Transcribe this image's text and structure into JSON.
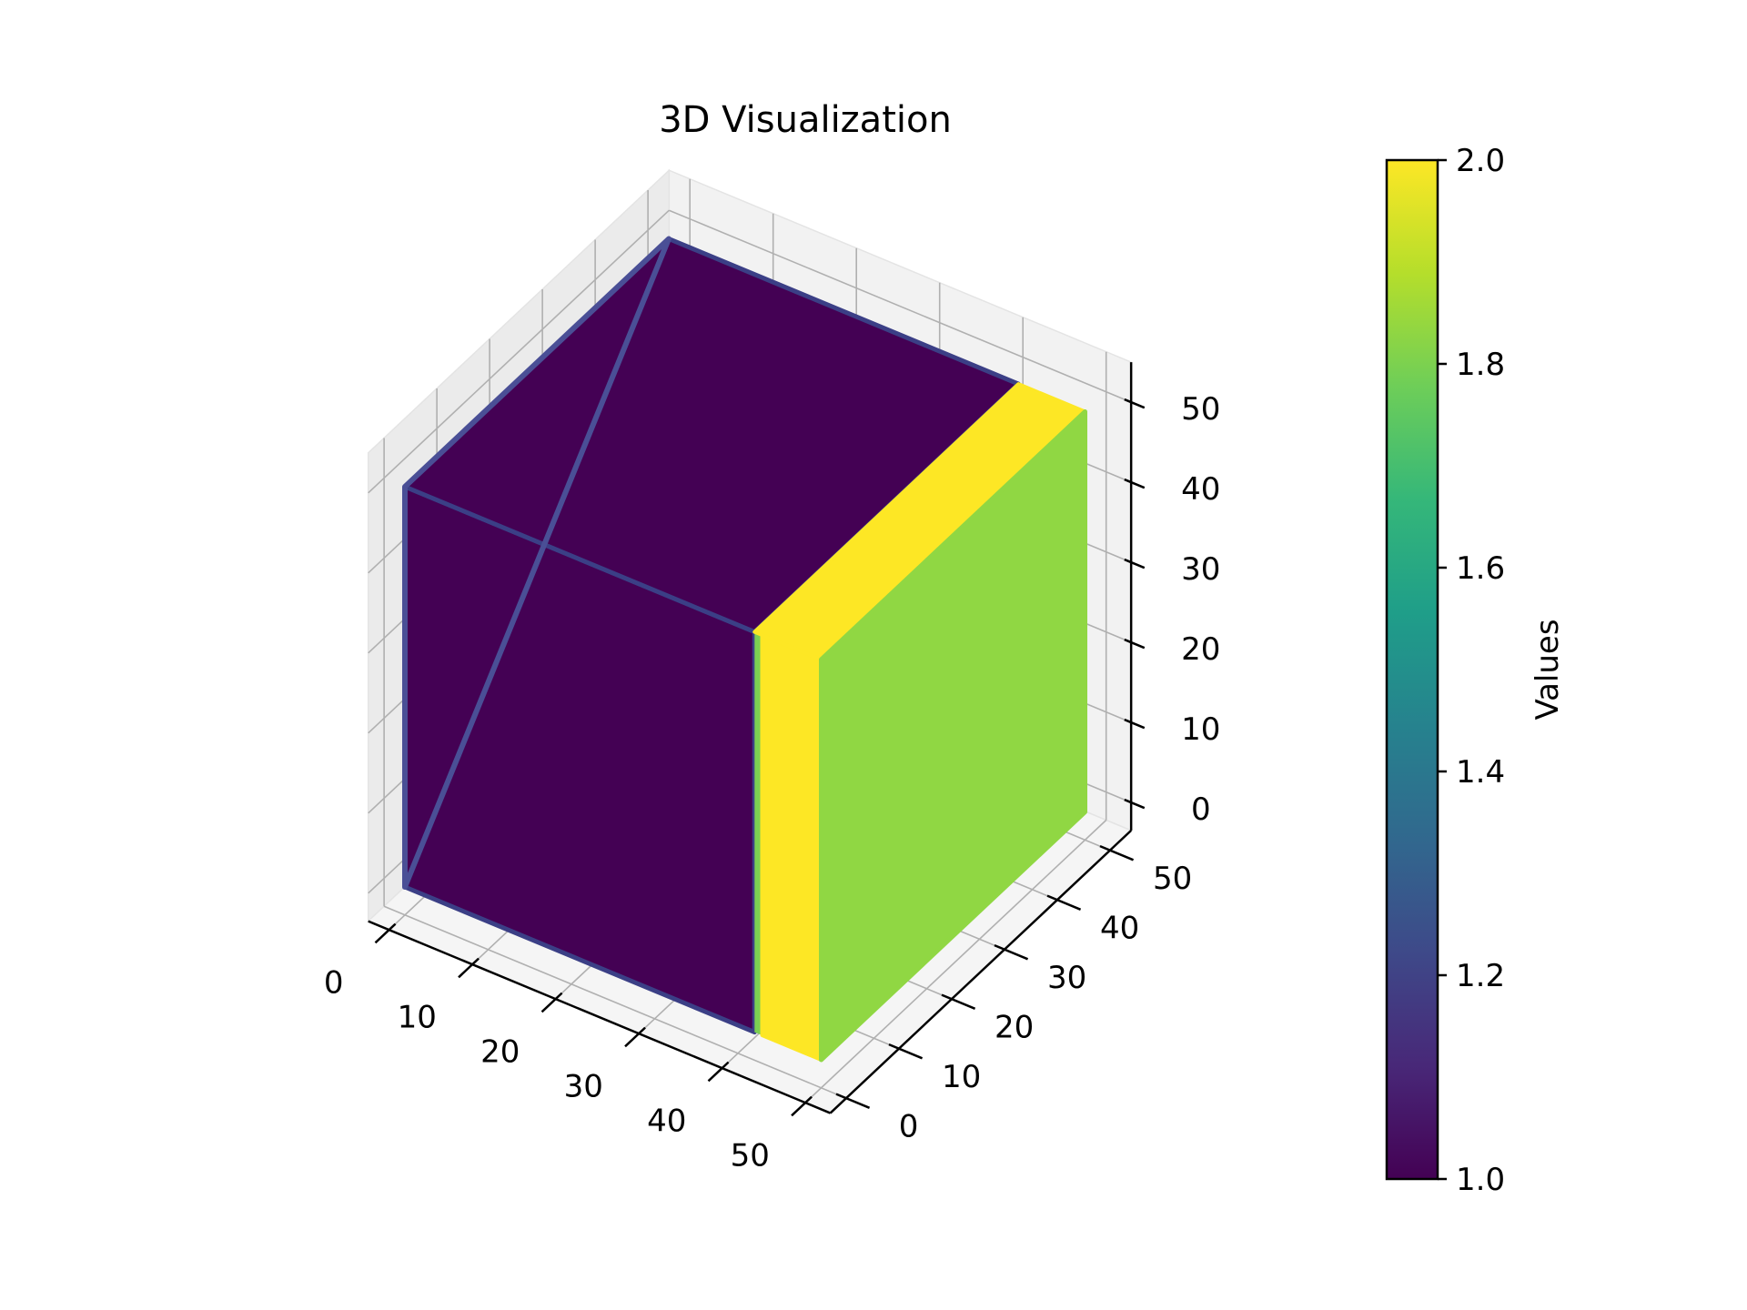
{
  "chart_data": {
    "type": "scatter",
    "projection": "3d",
    "title": "3D Visualization",
    "xlabel": "",
    "ylabel": "",
    "zlabel": "",
    "x_ticks": [
      0,
      10,
      20,
      30,
      40,
      50
    ],
    "y_ticks": [
      0,
      10,
      20,
      30,
      40,
      50
    ],
    "z_ticks": [
      0,
      10,
      20,
      30,
      40,
      50
    ],
    "xlim": [
      0,
      50
    ],
    "ylim": [
      0,
      50
    ],
    "zlim": [
      0,
      50
    ],
    "grid": true,
    "regions": [
      {
        "value": 1,
        "x": [
          0,
          50
        ],
        "y": [
          0,
          50
        ],
        "z": [
          0,
          50
        ],
        "color": "#440154",
        "note": "main block"
      },
      {
        "value": 2,
        "x": [
          42,
          50
        ],
        "y": [
          0,
          50
        ],
        "z": [
          0,
          50
        ],
        "color": "#fde725",
        "note": "yellow slab on right"
      },
      {
        "value": 1.85,
        "x": [
          50,
          50
        ],
        "y": [
          0,
          50
        ],
        "z": [
          0,
          50
        ],
        "color": "#90d743",
        "note": "green face"
      }
    ],
    "colorbar": {
      "label": "Values",
      "min": 1.0,
      "max": 2.0,
      "ticks": [
        "1.0",
        "1.2",
        "1.4",
        "1.6",
        "1.8",
        "2.0"
      ],
      "colormap": "viridis",
      "colors": [
        "#440154",
        "#482878",
        "#3e4989",
        "#31688e",
        "#26828e",
        "#1f9e89",
        "#35b779",
        "#6ece58",
        "#b5de2b",
        "#fde725"
      ]
    }
  }
}
